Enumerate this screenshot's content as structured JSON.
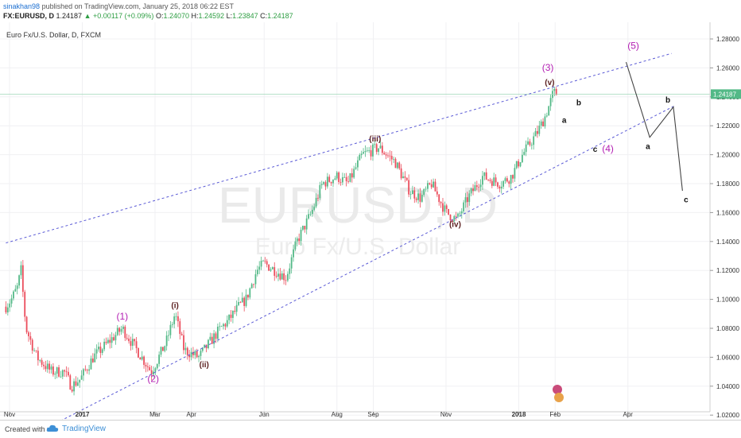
{
  "header": {
    "author": "sinakhan98",
    "published": "published on TradingView.com, January 25, 2018 06:22 EST",
    "symbol": "FX:EURUSD, D",
    "last": "1.24187",
    "change": "+0.00117 (+0.09%)",
    "open_label": "O:",
    "open": "1.24070",
    "high_label": "H:",
    "high": "1.24592",
    "low_label": "L:",
    "low": "1.23847",
    "close_label": "C:",
    "close": "1.24187"
  },
  "footer": {
    "created_with": "Created with",
    "brand": "TradingView"
  },
  "colors": {
    "up": "#53b987",
    "down": "#eb4d5c",
    "trendline": "#5b5bd6",
    "purple_label": "#b31fb3",
    "dark_label": "#5a1e1e",
    "projection": "#444444"
  },
  "chart_data": {
    "type": "candlestick",
    "title": "Euro Fx/U.S. Dollar, D, FXCM",
    "watermark_symbol": "EURUSD, D",
    "watermark_name": "Euro Fx/U.S. Dollar",
    "last_price_label": "1.24187",
    "last_price": 1.24187,
    "ylim": [
      1.0,
      1.29
    ],
    "y_ticks": [
      "1.02000",
      "1.04000",
      "1.06000",
      "1.08000",
      "1.10000",
      "1.12000",
      "1.14000",
      "1.16000",
      "1.18000",
      "1.20000",
      "1.22000",
      "1.24000",
      "1.26000",
      "1.28000"
    ],
    "x_ticks": [
      {
        "t": 0,
        "label": "Nov"
      },
      {
        "t": 2,
        "label": "2017"
      },
      {
        "t": 4,
        "label": "Mar"
      },
      {
        "t": 5,
        "label": "Apr"
      },
      {
        "t": 7,
        "label": "Jun"
      },
      {
        "t": 9,
        "label": "Aug"
      },
      {
        "t": 10,
        "label": "Sep"
      },
      {
        "t": 12,
        "label": "Nov"
      },
      {
        "t": 14,
        "label": "2018"
      },
      {
        "t": 15,
        "label": "Feb"
      },
      {
        "t": 17,
        "label": "Apr"
      }
    ],
    "price_path": [
      [
        -0.1,
        1.095
      ],
      [
        0.05,
        1.1
      ],
      [
        0.25,
        1.11
      ],
      [
        0.3,
        1.125
      ],
      [
        0.45,
        1.08
      ],
      [
        0.75,
        1.06
      ],
      [
        1.15,
        1.05
      ],
      [
        1.5,
        1.05
      ],
      [
        1.7,
        1.04
      ],
      [
        1.95,
        1.045
      ],
      [
        2.3,
        1.06
      ],
      [
        2.7,
        1.07
      ],
      [
        3.1,
        1.08
      ],
      [
        3.5,
        1.065
      ],
      [
        3.9,
        1.05
      ],
      [
        4.3,
        1.07
      ],
      [
        4.55,
        1.09
      ],
      [
        4.8,
        1.065
      ],
      [
        5.2,
        1.06
      ],
      [
        5.5,
        1.07
      ],
      [
        5.8,
        1.08
      ],
      [
        6.0,
        1.085
      ],
      [
        6.3,
        1.095
      ],
      [
        6.5,
        1.1
      ],
      [
        6.8,
        1.12
      ],
      [
        7.0,
        1.125
      ],
      [
        7.3,
        1.12
      ],
      [
        7.6,
        1.115
      ],
      [
        7.9,
        1.14
      ],
      [
        8.3,
        1.16
      ],
      [
        8.6,
        1.18
      ],
      [
        9.0,
        1.185
      ],
      [
        9.3,
        1.18
      ],
      [
        9.7,
        1.2
      ],
      [
        10.15,
        1.205
      ],
      [
        10.6,
        1.195
      ],
      [
        11.0,
        1.175
      ],
      [
        11.3,
        1.17
      ],
      [
        11.6,
        1.18
      ],
      [
        12.0,
        1.16
      ],
      [
        12.3,
        1.155
      ],
      [
        12.6,
        1.17
      ],
      [
        13.0,
        1.185
      ],
      [
        13.5,
        1.18
      ],
      [
        13.8,
        1.185
      ],
      [
        14.1,
        1.2
      ],
      [
        14.5,
        1.215
      ],
      [
        14.7,
        1.225
      ],
      [
        14.85,
        1.235
      ],
      [
        14.95,
        1.243
      ],
      [
        15.05,
        1.242
      ]
    ],
    "trendlines": [
      {
        "name": "upper",
        "from": [
          -0.1,
          1.139
        ],
        "to": [
          18.2,
          1.27
        ]
      },
      {
        "name": "lower",
        "from": [
          1.4,
          1.016
        ],
        "to": [
          18.3,
          1.234
        ]
      }
    ],
    "projection_path": [
      [
        16.95,
        1.264
      ],
      [
        17.6,
        1.212
      ],
      [
        18.25,
        1.233
      ],
      [
        18.5,
        1.175
      ]
    ],
    "wave_labels": [
      {
        "text": "(1)",
        "t": 3.1,
        "price": 1.086,
        "style": "purple"
      },
      {
        "text": "(2)",
        "t": 3.95,
        "price": 1.043,
        "style": "purple"
      },
      {
        "text": "(3)",
        "t": 14.8,
        "price": 1.258,
        "style": "purple"
      },
      {
        "text": "(4)",
        "t": 16.45,
        "price": 1.202,
        "style": "purple"
      },
      {
        "text": "(5)",
        "t": 17.15,
        "price": 1.273,
        "style": "purple"
      },
      {
        "text": "(i)",
        "t": 4.55,
        "price": 1.094,
        "style": "dark"
      },
      {
        "text": "(ii)",
        "t": 5.35,
        "price": 1.053,
        "style": "dark"
      },
      {
        "text": "(iii)",
        "t": 10.05,
        "price": 1.209,
        "style": "dark"
      },
      {
        "text": "(iv)",
        "t": 12.25,
        "price": 1.15,
        "style": "dark"
      },
      {
        "text": "(v)",
        "t": 14.85,
        "price": 1.248,
        "style": "dark"
      },
      {
        "text": "a",
        "t": 15.25,
        "price": 1.222,
        "style": "black"
      },
      {
        "text": "b",
        "t": 15.65,
        "price": 1.234,
        "style": "black"
      },
      {
        "text": "c",
        "t": 16.1,
        "price": 1.202,
        "style": "black"
      },
      {
        "text": "a",
        "t": 17.55,
        "price": 1.204,
        "style": "black"
      },
      {
        "text": "b",
        "t": 18.1,
        "price": 1.236,
        "style": "black"
      },
      {
        "text": "c",
        "t": 18.6,
        "price": 1.167,
        "style": "black"
      }
    ]
  }
}
